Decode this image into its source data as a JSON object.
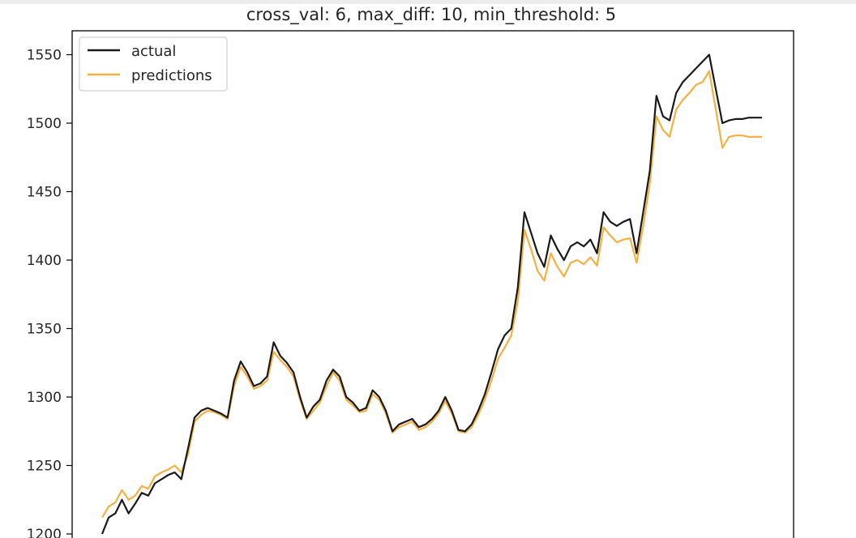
{
  "chart_data": {
    "type": "line",
    "title": "cross_val: 6, max_diff: 10, min_threshold: 5",
    "xlabel": "",
    "ylabel": "",
    "ylim": [
      1200,
      1570
    ],
    "yticks": [
      1200,
      1250,
      1300,
      1350,
      1400,
      1450,
      1500,
      1550
    ],
    "grid": false,
    "legend_position": "top-left",
    "colors": {
      "actual": "#1a1a1a",
      "predictions": "#f5b041"
    },
    "x": [
      0,
      3,
      6,
      9,
      12,
      15,
      18,
      21,
      24,
      27,
      30,
      33,
      36,
      39,
      42,
      45,
      48,
      51,
      54,
      57,
      60,
      63,
      66,
      69,
      72,
      75,
      78,
      81,
      84,
      87,
      90,
      93,
      96,
      99,
      102,
      105,
      108,
      111,
      114,
      117,
      120,
      123,
      126,
      129,
      132,
      135,
      138,
      141,
      144,
      147,
      150,
      153,
      156,
      159,
      162,
      165,
      168,
      171,
      174,
      177,
      180,
      183,
      186,
      189,
      192,
      195,
      198,
      201,
      204,
      207,
      210,
      213,
      216,
      219,
      222,
      225,
      228,
      231,
      234,
      237,
      240,
      243,
      246,
      249,
      252,
      255,
      258,
      261,
      264,
      267,
      270,
      273,
      276,
      279,
      282,
      285,
      288,
      291,
      294,
      297,
      300
    ],
    "series": [
      {
        "name": "actual",
        "values": [
          1200,
          1212,
          1215,
          1225,
          1215,
          1222,
          1230,
          1228,
          1237,
          1240,
          1243,
          1245,
          1240,
          1262,
          1285,
          1290,
          1292,
          1290,
          1288,
          1285,
          1312,
          1326,
          1318,
          1308,
          1310,
          1315,
          1340,
          1330,
          1325,
          1318,
          1300,
          1285,
          1293,
          1298,
          1312,
          1320,
          1315,
          1300,
          1296,
          1290,
          1292,
          1305,
          1300,
          1290,
          1275,
          1280,
          1282,
          1284,
          1278,
          1280,
          1284,
          1290,
          1300,
          1290,
          1276,
          1275,
          1280,
          1290,
          1302,
          1318,
          1335,
          1345,
          1350,
          1380,
          1435,
          1420,
          1405,
          1395,
          1418,
          1408,
          1400,
          1410,
          1413,
          1410,
          1415,
          1405,
          1435,
          1428,
          1425,
          1428,
          1430,
          1405,
          1435,
          1465,
          1520,
          1505,
          1502,
          1522,
          1530,
          1535,
          1540,
          1545,
          1550,
          1525,
          1500,
          1502,
          1503,
          1503,
          1504,
          1504,
          1504
        ]
      },
      {
        "name": "predictions",
        "values": [
          1212,
          1220,
          1223,
          1232,
          1225,
          1228,
          1235,
          1233,
          1242,
          1245,
          1247,
          1250,
          1245,
          1258,
          1282,
          1287,
          1290,
          1289,
          1287,
          1284,
          1308,
          1322,
          1315,
          1306,
          1308,
          1312,
          1333,
          1327,
          1322,
          1315,
          1298,
          1284,
          1290,
          1296,
          1308,
          1318,
          1312,
          1298,
          1294,
          1289,
          1290,
          1302,
          1298,
          1288,
          1274,
          1278,
          1280,
          1282,
          1276,
          1278,
          1282,
          1288,
          1297,
          1288,
          1275,
          1274,
          1278,
          1287,
          1298,
          1312,
          1328,
          1336,
          1345,
          1370,
          1422,
          1408,
          1392,
          1385,
          1405,
          1395,
          1388,
          1398,
          1400,
          1397,
          1402,
          1396,
          1424,
          1418,
          1413,
          1415,
          1416,
          1398,
          1425,
          1456,
          1505,
          1495,
          1490,
          1510,
          1517,
          1522,
          1528,
          1530,
          1538,
          1510,
          1482,
          1490,
          1491,
          1491,
          1490,
          1490,
          1490
        ]
      }
    ]
  }
}
